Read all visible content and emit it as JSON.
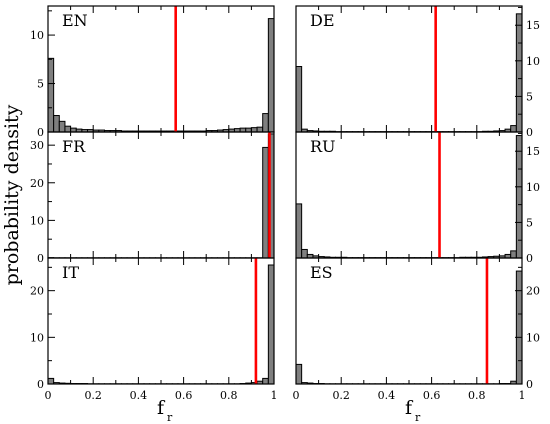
{
  "figure": {
    "ylabel": "probability density",
    "xlabel_main": "f",
    "xlabel_sub": "r",
    "bar_color": "#7f7f7f",
    "line_color": "#ff0000",
    "x_ticks": [
      "0",
      "0.2",
      "0.4",
      "0.6",
      "0.8",
      "1"
    ]
  },
  "chart_data": [
    {
      "type": "bar",
      "label": "EN",
      "xlim": [
        0,
        1
      ],
      "ylim": [
        0,
        13
      ],
      "y_ticks": [
        0,
        5,
        10
      ],
      "y_axis_side": "left",
      "bin_width": 0.025,
      "values": [
        7.6,
        1.7,
        1.1,
        0.6,
        0.4,
        0.3,
        0.25,
        0.25,
        0.2,
        0.2,
        0.15,
        0.15,
        0.15,
        0.1,
        0.1,
        0.1,
        0.1,
        0.1,
        0.1,
        0.1,
        0.1,
        0.1,
        0.1,
        0.1,
        0.1,
        0.1,
        0.1,
        0.1,
        0.15,
        0.15,
        0.2,
        0.25,
        0.3,
        0.35,
        0.4,
        0.4,
        0.45,
        0.5,
        1.9,
        11.7
      ],
      "mean_line": 0.565
    },
    {
      "type": "bar",
      "label": "DE",
      "xlim": [
        0,
        1
      ],
      "ylim": [
        0,
        17.7
      ],
      "y_ticks": [
        0,
        5,
        10,
        15
      ],
      "y_axis_side": "right",
      "bin_width": 0.025,
      "values": [
        9.2,
        0.4,
        0.2,
        0.15,
        0.1,
        0.1,
        0.1,
        0.05,
        0.05,
        0.05,
        0.05,
        0.05,
        0.05,
        0.05,
        0.05,
        0.05,
        0.05,
        0.05,
        0.05,
        0.05,
        0.05,
        0.05,
        0.05,
        0.05,
        0.05,
        0.05,
        0.05,
        0.05,
        0.05,
        0.05,
        0.05,
        0.05,
        0.05,
        0.1,
        0.1,
        0.15,
        0.2,
        0.4,
        0.9,
        16.6
      ],
      "mean_line": 0.618
    },
    {
      "type": "bar",
      "label": "FR",
      "xlim": [
        0,
        1
      ],
      "ylim": [
        0,
        33.5
      ],
      "y_ticks": [
        0,
        10,
        20,
        30
      ],
      "y_axis_side": "left",
      "bin_width": 0.025,
      "values": [
        0.1,
        0.05,
        0.05,
        0.05,
        0.05,
        0.05,
        0.05,
        0.05,
        0.05,
        0.05,
        0.05,
        0.05,
        0.05,
        0.05,
        0.05,
        0.05,
        0.05,
        0.05,
        0.05,
        0.05,
        0.05,
        0.05,
        0.05,
        0.05,
        0.05,
        0.05,
        0.05,
        0.05,
        0.05,
        0.05,
        0.05,
        0.05,
        0.05,
        0.05,
        0.05,
        0.05,
        0.05,
        0.05,
        29.4,
        33
      ],
      "mean_line": 0.98
    },
    {
      "type": "bar",
      "label": "RU",
      "xlim": [
        0,
        1
      ],
      "ylim": [
        0,
        17.7
      ],
      "y_ticks": [
        0,
        5,
        10,
        15
      ],
      "y_axis_side": "right",
      "bin_width": 0.025,
      "values": [
        7.6,
        1.2,
        0.5,
        0.3,
        0.2,
        0.15,
        0.1,
        0.1,
        0.1,
        0.05,
        0.05,
        0.05,
        0.05,
        0.05,
        0.05,
        0.05,
        0.05,
        0.05,
        0.05,
        0.05,
        0.05,
        0.05,
        0.05,
        0.05,
        0.05,
        0.05,
        0.05,
        0.05,
        0.05,
        0.1,
        0.1,
        0.1,
        0.1,
        0.15,
        0.2,
        0.25,
        0.3,
        0.5,
        1.0,
        17.2
      ],
      "mean_line": 0.635
    },
    {
      "type": "bar",
      "label": "IT",
      "xlim": [
        0,
        1
      ],
      "ylim": [
        0,
        27
      ],
      "y_ticks": [
        0,
        10,
        20
      ],
      "y_axis_side": "left",
      "bin_width": 0.025,
      "values": [
        1.2,
        0.3,
        0.2,
        0.15,
        0.1,
        0.1,
        0.1,
        0.05,
        0.05,
        0.05,
        0.05,
        0.05,
        0.05,
        0.05,
        0.05,
        0.05,
        0.05,
        0.05,
        0.05,
        0.05,
        0.05,
        0.05,
        0.05,
        0.05,
        0.05,
        0.05,
        0.05,
        0.05,
        0.05,
        0.05,
        0.05,
        0.05,
        0.05,
        0.05,
        0.1,
        0.2,
        0.3,
        0.6,
        1.2,
        25.5
      ],
      "mean_line": 0.92
    },
    {
      "type": "bar",
      "label": "ES",
      "xlim": [
        0,
        1
      ],
      "ylim": [
        0,
        27
      ],
      "y_ticks": [
        0,
        10,
        20
      ],
      "y_axis_side": "right",
      "bin_width": 0.025,
      "values": [
        4.2,
        0.3,
        0.2,
        0.1,
        0.1,
        0.05,
        0.05,
        0.05,
        0.05,
        0.05,
        0.05,
        0.05,
        0.05,
        0.05,
        0.05,
        0.05,
        0.05,
        0.05,
        0.05,
        0.05,
        0.05,
        0.05,
        0.05,
        0.05,
        0.05,
        0.05,
        0.05,
        0.05,
        0.05,
        0.05,
        0.05,
        0.05,
        0.05,
        0.05,
        0.05,
        0.05,
        0.1,
        0.1,
        0.6,
        24.2
      ],
      "mean_line": 0.845
    }
  ]
}
